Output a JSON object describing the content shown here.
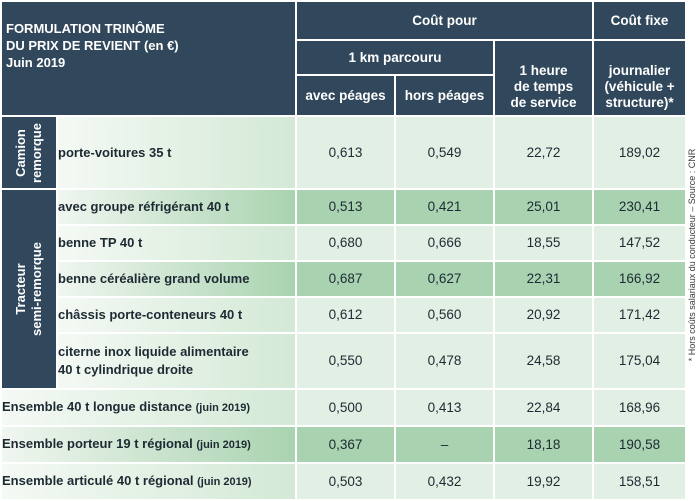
{
  "header": {
    "title_line1": "FORMULATION TRINÔME",
    "title_line2": "DU PRIX DE REVIENT (en €)",
    "title_line3": "Juin 2019",
    "cout_pour": "Coût pour",
    "km": "1 km parcouru",
    "avec_peages": "avec péages",
    "hors_peages": "hors péages",
    "heure_l1": "1 heure",
    "heure_l2": "de temps",
    "heure_l3": "de service",
    "cout_fixe": "Coût fixe",
    "journalier_l1": "journalier",
    "journalier_l2": "(véhicule +",
    "journalier_l3": "structure)*"
  },
  "groups": {
    "camion_l1": "Camion",
    "camion_l2": "remorque",
    "tracteur_l1": "Tracteur",
    "tracteur_l2": "semi-remorque"
  },
  "rows": [
    {
      "label": "porte-voitures 35 t",
      "avec": "0,613",
      "hors": "0,549",
      "heure": "22,72",
      "fixe": "189,02"
    },
    {
      "label": "avec groupe réfrigérant 40 t",
      "avec": "0,513",
      "hors": "0,421",
      "heure": "25,01",
      "fixe": "230,41"
    },
    {
      "label": "benne TP 40 t",
      "avec": "0,680",
      "hors": "0,666",
      "heure": "18,55",
      "fixe": "147,52"
    },
    {
      "label": "benne céréalière grand volume",
      "avec": "0,687",
      "hors": "0,627",
      "heure": "22,31",
      "fixe": "166,92"
    },
    {
      "label": "châssis porte-conteneurs 40 t",
      "avec": "0,612",
      "hors": "0,560",
      "heure": "20,92",
      "fixe": "171,42"
    },
    {
      "label_l1": "citerne inox liquide alimentaire",
      "label_l2": "40 t cylindrique droite",
      "avec": "0,550",
      "hors": "0,478",
      "heure": "24,58",
      "fixe": "175,04"
    },
    {
      "label": "Ensemble 40 t longue distance",
      "year": "(juin 2019)",
      "avec": "0,500",
      "hors": "0,413",
      "heure": "22,84",
      "fixe": "168,96"
    },
    {
      "label": "Ensemble porteur 19 t régional",
      "year": "(juin 2019)",
      "avec": "0,367",
      "hors": "–",
      "heure": "18,18",
      "fixe": "190,58"
    },
    {
      "label": "Ensemble articulé 40 t régional",
      "year": "(juin 2019)",
      "avec": "0,503",
      "hors": "0,432",
      "heure": "19,92",
      "fixe": "158,51"
    }
  ],
  "side_note": "* Hors coûts salariaux du conducteur – Source : CNR"
}
